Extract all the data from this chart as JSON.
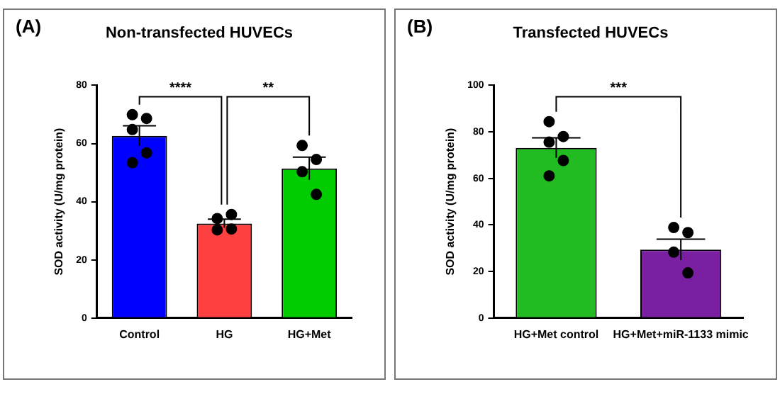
{
  "chart_data": [
    {
      "type": "bar",
      "title": "Non-transfected HUVECs",
      "ylabel": "SOD activity (U/mg protein)",
      "categories": [
        "Control",
        "HG",
        "HG+Met"
      ],
      "series": [
        {
          "values": [
            62.6,
            32.5,
            51.4
          ],
          "colors": [
            "#0000ff",
            "#ff4040",
            "#00cc00"
          ],
          "errors": [
            3.5,
            1.5,
            3.9
          ]
        },
        {
          "type": "scatter",
          "color": "#000000",
          "x": [
            "Control",
            "Control",
            "Control",
            "Control",
            "Control",
            "HG",
            "HG",
            "HG",
            "HG",
            "HG+Met",
            "HG+Met",
            "HG+Met",
            "HG+Met"
          ],
          "values": [
            69.9,
            68.6,
            64.8,
            56.8,
            53.4,
            34.2,
            35.6,
            30.3,
            30.6,
            59.3,
            54.5,
            50.3,
            42.5
          ]
        }
      ],
      "ylim": [
        0,
        80
      ],
      "yticks": [
        0,
        20,
        40,
        60,
        80
      ],
      "grid": false,
      "marker": "circle",
      "annotations": [
        "(A)",
        "****",
        "**"
      ]
    },
    {
      "type": "bar",
      "title": "Transfected HUVECs",
      "ylabel": "SOD activity (U/mg protein)",
      "categories": [
        "HG+Met control",
        "HG+Met+miR-1133 mimic"
      ],
      "series": [
        {
          "values": [
            73.1,
            29.4
          ],
          "colors": [
            "#22bb22",
            "#7a1fa2"
          ],
          "errors": [
            4.3,
            4.5
          ]
        },
        {
          "type": "scatter",
          "color": "#000000",
          "x": [
            "HG+Met control",
            "HG+Met control",
            "HG+Met control",
            "HG+Met control",
            "HG+Met control",
            "HG+Met+miR-1133 mimic",
            "HG+Met+miR-1133 mimic",
            "HG+Met+miR-1133 mimic",
            "HG+Met+miR-1133 mimic"
          ],
          "values": [
            84.4,
            78.0,
            75.6,
            67.7,
            61.1,
            38.9,
            36.7,
            28.3,
            19.4
          ]
        }
      ],
      "ylim": [
        0,
        100
      ],
      "yticks": [
        0,
        20,
        40,
        60,
        80,
        100
      ],
      "grid": false,
      "marker": "circle",
      "annotations": [
        "(B)",
        "***"
      ]
    }
  ]
}
